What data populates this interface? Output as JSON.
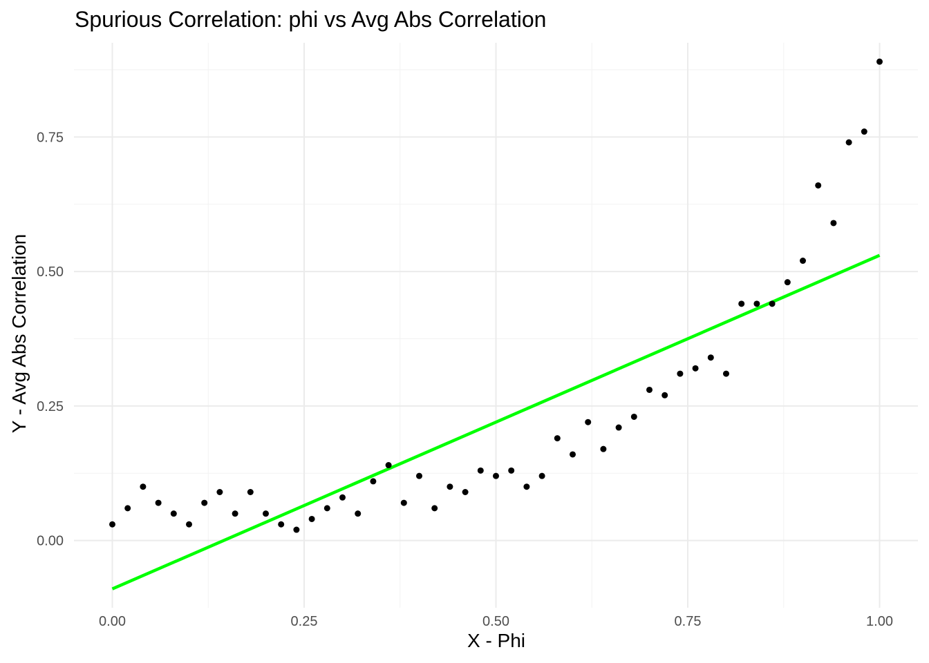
{
  "chart_data": {
    "type": "scatter",
    "title": "Spurious Correlation: phi vs Avg Abs Correlation",
    "xlabel": "X - Phi",
    "ylabel": "Y - Avg Abs Correlation",
    "xlim": [
      -0.05,
      1.05
    ],
    "ylim": [
      -0.125,
      0.925
    ],
    "x_ticks": [
      0,
      0.25,
      0.5,
      0.75,
      1
    ],
    "x_tick_labels": [
      "0.00",
      "0.25",
      "0.50",
      "0.75",
      "1.00"
    ],
    "y_ticks": [
      0,
      0.25,
      0.5,
      0.75
    ],
    "y_tick_labels": [
      "0.00",
      "0.25",
      "0.50",
      "0.75"
    ],
    "grid": true,
    "series": [
      {
        "type": "scatter",
        "color": "#000000",
        "x": [
          0,
          0.02,
          0.04,
          0.06,
          0.08,
          0.1,
          0.12,
          0.14,
          0.16,
          0.18,
          0.2,
          0.22,
          0.24,
          0.26,
          0.28,
          0.3,
          0.32,
          0.34,
          0.36,
          0.38,
          0.4,
          0.42,
          0.44,
          0.46,
          0.48,
          0.5,
          0.52,
          0.54,
          0.56,
          0.58,
          0.6,
          0.62,
          0.64,
          0.66,
          0.68,
          0.7,
          0.72,
          0.74,
          0.76,
          0.78,
          0.8,
          0.82,
          0.84,
          0.86,
          0.88,
          0.9,
          0.92,
          0.94,
          0.96,
          0.98,
          1.0
        ],
        "y": [
          0.03,
          0.06,
          0.1,
          0.07,
          0.05,
          0.03,
          0.07,
          0.09,
          0.05,
          0.09,
          0.05,
          0.03,
          0.02,
          0.04,
          0.06,
          0.08,
          0.05,
          0.11,
          0.14,
          0.07,
          0.12,
          0.06,
          0.1,
          0.09,
          0.13,
          0.12,
          0.13,
          0.1,
          0.12,
          0.19,
          0.16,
          0.22,
          0.17,
          0.21,
          0.23,
          0.28,
          0.27,
          0.31,
          0.32,
          0.34,
          0.31,
          0.44,
          0.44,
          0.44,
          0.48,
          0.52,
          0.66,
          0.59,
          0.74,
          0.76,
          0.89
        ]
      },
      {
        "type": "line",
        "color": "#00ff00",
        "x": [
          0,
          1
        ],
        "y": [
          -0.09,
          0.53
        ]
      }
    ]
  }
}
